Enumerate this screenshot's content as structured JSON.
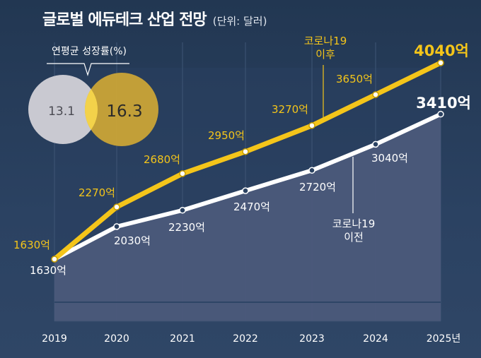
{
  "title": "글로벌 에듀테크 산업 전망",
  "unit": "(단위: 달러)",
  "growth_panel": {
    "label": "연평균 성장률(%)",
    "left_value": "13.1",
    "right_value": "16.3",
    "left_color": "#c9c9d1",
    "right_color": "#cfa735"
  },
  "colors": {
    "after_covid": "#f4c51a",
    "before_covid": "#ffffff",
    "area": "#4b5a7a",
    "grid": "#3e5575"
  },
  "chart_data": {
    "type": "line",
    "x": [
      "2019",
      "2020",
      "2021",
      "2022",
      "2023",
      "2024",
      "2025년"
    ],
    "series": [
      {
        "name": "코로나19 이후",
        "values": [
          1630,
          2270,
          2680,
          2950,
          3270,
          3650,
          4040
        ],
        "labels": [
          "1630억",
          "2270억",
          "2680억",
          "2950억",
          "3270억",
          "3650억",
          "4040억"
        ],
        "color": "#f4c51a"
      },
      {
        "name": "코로나19 이전",
        "values": [
          1630,
          2030,
          2230,
          2470,
          2720,
          3040,
          3410
        ],
        "labels": [
          "1630억",
          "2030억",
          "2230억",
          "2470억",
          "2720억",
          "3040억",
          "3410억"
        ],
        "color": "#ffffff"
      }
    ],
    "annotations": [
      {
        "series": 0,
        "lines": [
          "코로나19",
          "이후"
        ]
      },
      {
        "series": 1,
        "lines": [
          "코로나19",
          "이전"
        ]
      }
    ]
  }
}
